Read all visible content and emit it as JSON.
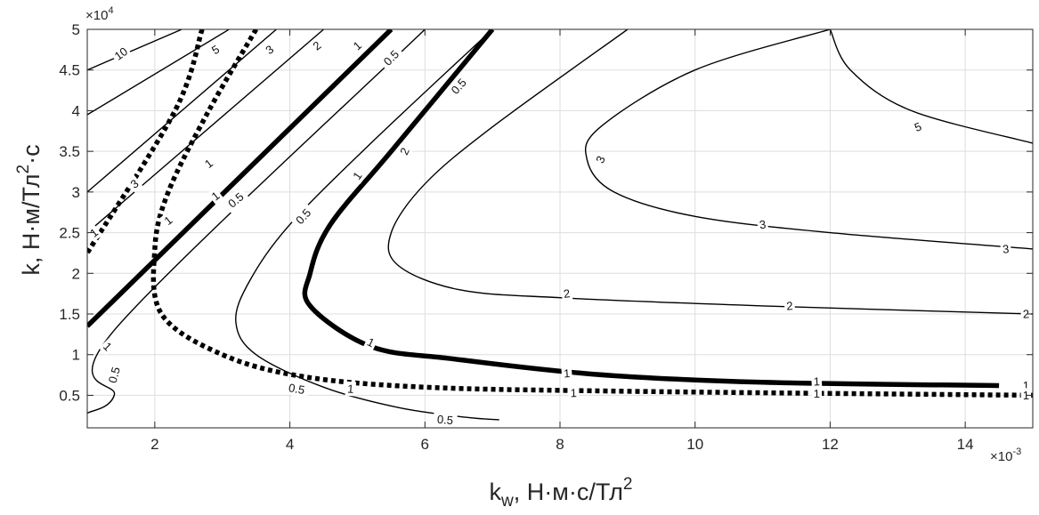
{
  "chart_data": {
    "type": "contour",
    "xlabel": {
      "base": "k",
      "sub": "w",
      "rest": ", Н·м·с/Тл",
      "sup": "2"
    },
    "ylabel": {
      "base": "k, Н·м/Тл",
      "sup": "2",
      "rest": "·с"
    },
    "x_exponent": "×10",
    "x_exponent_power": "-3",
    "y_exponent": "×10",
    "y_exponent_power": "4",
    "xlim": [
      1,
      15
    ],
    "ylim": [
      0.1,
      5
    ],
    "xticks": [
      2,
      4,
      6,
      8,
      10,
      12,
      14
    ],
    "xtick_labels": [
      "2",
      "4",
      "6",
      "8",
      "10",
      "12",
      "14"
    ],
    "yticks": [
      0.5,
      1,
      1.5,
      2,
      2.5,
      3,
      3.5,
      4,
      4.5,
      5
    ],
    "ytick_labels": [
      "0.5",
      "1",
      "1.5",
      "2",
      "2.5",
      "3",
      "3.5",
      "4",
      "4.5",
      "5"
    ],
    "grid": true,
    "series": [
      {
        "level": "10",
        "style": "thin",
        "x": [
          1.0,
          2.4
        ],
        "y": [
          4.5,
          5.0
        ]
      },
      {
        "level": "5",
        "style": "thin",
        "x": [
          1.0,
          3.1
        ],
        "y": [
          3.95,
          5.0
        ]
      },
      {
        "level": "3",
        "style": "thin",
        "x": [
          1.0,
          3.8
        ],
        "y": [
          3.0,
          5.0
        ]
      },
      {
        "level": "2",
        "style": "thin",
        "x": [
          1.0,
          4.5
        ],
        "y": [
          2.5,
          5.0
        ]
      },
      {
        "level": "1",
        "style": "thick",
        "x": [
          1.0,
          5.5
        ],
        "y": [
          1.35,
          5.0
        ]
      },
      {
        "level": "0.5",
        "style": "thin",
        "x": [
          1.0,
          1.4,
          1.4,
          6.0
        ],
        "y": [
          0.28,
          0.5,
          1.3,
          5.0
        ]
      },
      {
        "level": "0.5",
        "style": "thin",
        "x": [
          7.0,
          5.2,
          4.0,
          3.4,
          3.2,
          3.5,
          4.5,
          5.6,
          6.6,
          7.1
        ],
        "y": [
          5.0,
          3.6,
          2.6,
          1.9,
          1.4,
          1.0,
          0.6,
          0.35,
          0.23,
          0.2
        ]
      },
      {
        "level": "1",
        "style": "thick",
        "x": [
          7.0,
          5.5,
          4.6,
          4.3,
          4.3,
          5.2,
          6.4,
          8.5,
          11.0,
          14.5
        ],
        "y": [
          5.0,
          3.5,
          2.6,
          2.0,
          1.6,
          1.1,
          0.95,
          0.76,
          0.66,
          0.62
        ]
      },
      {
        "level": "1",
        "style": "dotted",
        "x": [
          2.7,
          2.3,
          1.0
        ],
        "y": [
          5.0,
          4.0,
          2.25
        ]
      },
      {
        "level": "1",
        "style": "dotted",
        "x": [
          3.5,
          2.8,
          2.2,
          2.0,
          2.1,
          3.0,
          4.2,
          6.0,
          9.0,
          15.0
        ],
        "y": [
          5.0,
          4.0,
          3.0,
          2.3,
          1.5,
          1.0,
          0.73,
          0.6,
          0.55,
          0.5
        ]
      },
      {
        "level": "2",
        "style": "thin",
        "x": [
          9.0,
          7.0,
          6.0,
          5.5,
          5.6,
          6.5,
          8.0,
          11.0,
          15.0
        ],
        "y": [
          5.0,
          3.8,
          3.1,
          2.5,
          2.1,
          1.8,
          1.7,
          1.6,
          1.5
        ]
      },
      {
        "level": "3",
        "style": "thin",
        "x": [
          12.0,
          10.0,
          8.6,
          8.4,
          8.8,
          10.0,
          12.0,
          15.0
        ],
        "y": [
          5.0,
          4.5,
          3.8,
          3.4,
          3.0,
          2.7,
          2.5,
          2.3
        ]
      },
      {
        "level": "5",
        "style": "thin",
        "x": [
          12.0,
          12.3,
          13.2,
          15.0
        ],
        "y": [
          5.0,
          4.5,
          4.0,
          3.6
        ]
      }
    ],
    "contour_labels": [
      {
        "text": "10",
        "x": 1.5,
        "y": 4.7,
        "rot": -36
      },
      {
        "text": "5",
        "x": 2.9,
        "y": 4.75,
        "rot": -32
      },
      {
        "text": "3",
        "x": 3.7,
        "y": 4.75,
        "rot": -37
      },
      {
        "text": "2",
        "x": 4.4,
        "y": 4.8,
        "rot": -38
      },
      {
        "text": "1",
        "x": 5.0,
        "y": 4.8,
        "rot": -40
      },
      {
        "text": "0.5",
        "x": 5.5,
        "y": 4.65,
        "rot": -45
      },
      {
        "text": "0.5",
        "x": 6.5,
        "y": 4.3,
        "rot": -48
      },
      {
        "text": "3",
        "x": 1.7,
        "y": 3.1,
        "rot": -38
      },
      {
        "text": "1",
        "x": 2.2,
        "y": 2.65,
        "rot": -38
      },
      {
        "text": "1",
        "x": 1.1,
        "y": 2.5,
        "rot": -38
      },
      {
        "text": "1",
        "x": 2.8,
        "y": 3.35,
        "rot": -38
      },
      {
        "text": "1",
        "x": 2.9,
        "y": 2.95,
        "rot": -38
      },
      {
        "text": "0.5",
        "x": 3.2,
        "y": 2.9,
        "rot": -40
      },
      {
        "text": "0.5",
        "x": 4.2,
        "y": 2.7,
        "rot": -48
      },
      {
        "text": "1",
        "x": 5.0,
        "y": 3.2,
        "rot": -55
      },
      {
        "text": "2",
        "x": 5.7,
        "y": 3.5,
        "rot": -65
      },
      {
        "text": "3",
        "x": 8.6,
        "y": 3.4,
        "rot": -65
      },
      {
        "text": "5",
        "x": 13.3,
        "y": 3.8,
        "rot": -22
      },
      {
        "text": "3",
        "x": 11.0,
        "y": 2.6,
        "rot": -8
      },
      {
        "text": "3",
        "x": 14.6,
        "y": 2.3,
        "rot": -5
      },
      {
        "text": "2",
        "x": 8.1,
        "y": 1.75,
        "rot": -8
      },
      {
        "text": "2",
        "x": 11.4,
        "y": 1.6,
        "rot": -4
      },
      {
        "text": "2",
        "x": 14.9,
        "y": 1.5,
        "rot": -2
      },
      {
        "text": "1",
        "x": 1.3,
        "y": 1.1,
        "rot": 45
      },
      {
        "text": "0.5",
        "x": 1.4,
        "y": 0.75,
        "rot": -75
      },
      {
        "text": "1",
        "x": 5.2,
        "y": 1.15,
        "rot": 25
      },
      {
        "text": "0.5",
        "x": 4.1,
        "y": 0.58,
        "rot": 10
      },
      {
        "text": "0.5",
        "x": 6.3,
        "y": 0.2,
        "rot": 5
      },
      {
        "text": "1",
        "x": 4.9,
        "y": 0.58,
        "rot": 4
      },
      {
        "text": "1",
        "x": 8.1,
        "y": 0.77,
        "rot": -4
      },
      {
        "text": "1",
        "x": 8.2,
        "y": 0.53,
        "rot": -2
      },
      {
        "text": "1",
        "x": 11.8,
        "y": 0.67,
        "rot": -2
      },
      {
        "text": "1",
        "x": 11.8,
        "y": 0.52,
        "rot": -1
      },
      {
        "text": "1",
        "x": 14.9,
        "y": 0.62,
        "rot": -1
      },
      {
        "text": "1",
        "x": 14.9,
        "y": 0.5,
        "rot": -1
      }
    ]
  }
}
